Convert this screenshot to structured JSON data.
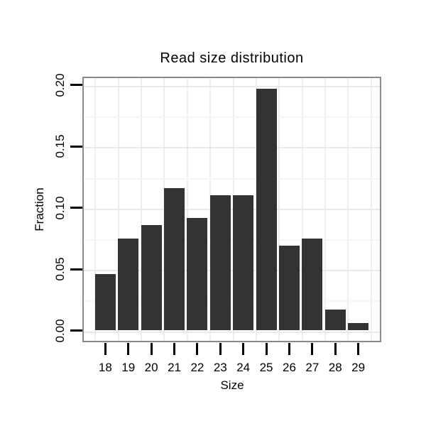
{
  "figure": {
    "background": "#ffffff"
  },
  "chart_data": {
    "type": "bar",
    "title": "Read size distribution",
    "xlabel": "Size",
    "ylabel": "Fraction",
    "categories": [
      "18",
      "19",
      "20",
      "21",
      "22",
      "23",
      "24",
      "25",
      "26",
      "27",
      "28",
      "29"
    ],
    "values": [
      0.046,
      0.075,
      0.086,
      0.116,
      0.092,
      0.11,
      0.11,
      0.197,
      0.069,
      0.075,
      0.017,
      0.006
    ],
    "ylim": [
      0,
      0.206
    ],
    "yticks": {
      "values": [
        0,
        0.05,
        0.1,
        0.15,
        0.2
      ],
      "labels": [
        "0.00",
        "0.05",
        "0.10",
        "0.15",
        "0.20"
      ]
    },
    "y_minor_tick_step": 0.025,
    "grid": "on",
    "legend": "none",
    "colors": {
      "bar_fill": "#333333",
      "panel_background": "#ffffff",
      "panel_border": "#8a8a8a",
      "grid_major": "#e9e9e9",
      "grid_minor": "#f5f5f5",
      "grid_vertical": "#eeeeee",
      "tick": "#000000",
      "text": "#000000"
    }
  }
}
